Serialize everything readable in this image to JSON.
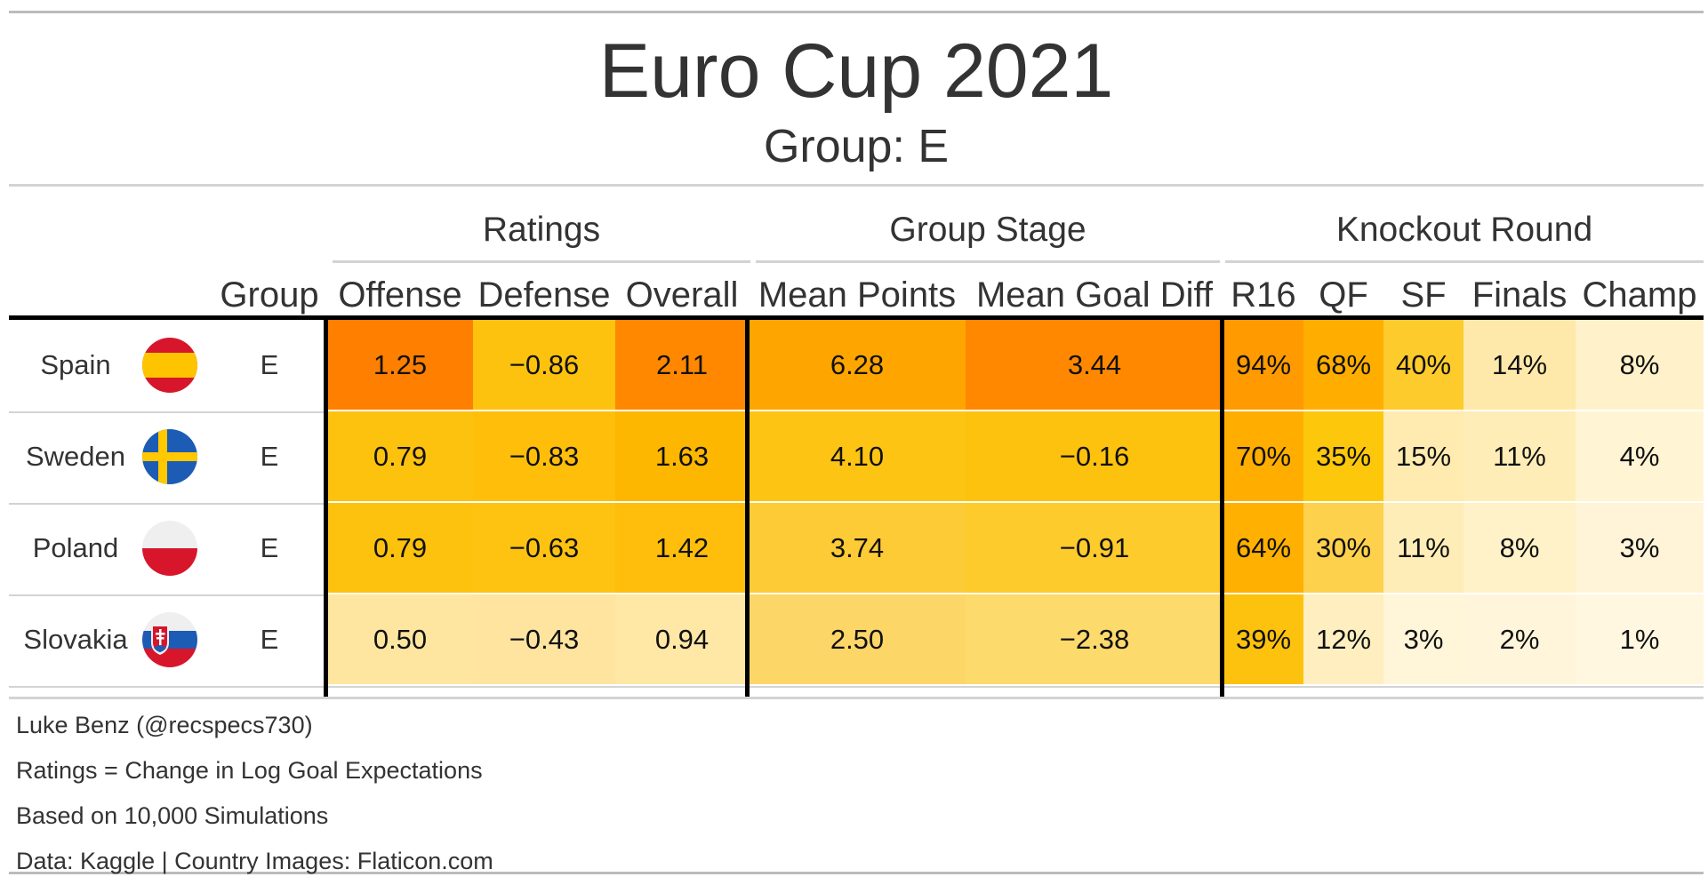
{
  "title": "Euro Cup 2021",
  "subtitle": "Group: E",
  "spanners": {
    "ratings": "Ratings",
    "group_stage": "Group Stage",
    "knockout": "Knockout Round"
  },
  "columns": {
    "group": "Group",
    "offense": "Offense",
    "defense": "Defense",
    "overall": "Overall",
    "mean_points": "Mean Points",
    "mean_goal_diff": "Mean Goal Diff",
    "r16": "R16",
    "qf": "QF",
    "sf": "SF",
    "finals": "Finals",
    "champ": "Champ"
  },
  "rows": [
    {
      "country": "Spain",
      "flag_icon": "spain-flag-icon",
      "group": "E",
      "offense": "1.25",
      "defense": "−0.86",
      "overall": "2.11",
      "mean_points": "6.28",
      "mean_goal_diff": "3.44",
      "r16": "94%",
      "qf": "68%",
      "sf": "40%",
      "finals": "14%",
      "champ": "8%"
    },
    {
      "country": "Sweden",
      "flag_icon": "sweden-flag-icon",
      "group": "E",
      "offense": "0.79",
      "defense": "−0.83",
      "overall": "1.63",
      "mean_points": "4.10",
      "mean_goal_diff": "−0.16",
      "r16": "70%",
      "qf": "35%",
      "sf": "15%",
      "finals": "11%",
      "champ": "4%"
    },
    {
      "country": "Poland",
      "flag_icon": "poland-flag-icon",
      "group": "E",
      "offense": "0.79",
      "defense": "−0.63",
      "overall": "1.42",
      "mean_points": "3.74",
      "mean_goal_diff": "−0.91",
      "r16": "64%",
      "qf": "30%",
      "sf": "11%",
      "finals": "8%",
      "champ": "3%"
    },
    {
      "country": "Slovakia",
      "flag_icon": "slovakia-flag-icon",
      "group": "E",
      "offense": "0.50",
      "defense": "−0.43",
      "overall": "0.94",
      "mean_points": "2.50",
      "mean_goal_diff": "−2.38",
      "r16": "39%",
      "qf": "12%",
      "sf": "3%",
      "finals": "2%",
      "champ": "1%"
    }
  ],
  "cell_colors": {
    "rows": [
      {
        "offense": "#FF7F00",
        "defense": "#FDC20D",
        "overall": "#FF8800",
        "mean_points": "#FFA500",
        "mean_goal_diff": "#FF8800",
        "r16": "#FF9A00",
        "qf": "#FFAE00",
        "sf": "#FDCB2C",
        "finals": "#FFE9AA",
        "champ": "#FFF1C9"
      },
      {
        "offense": "#FDC20D",
        "defense": "#FEBE0A",
        "overall": "#FEB700",
        "mean_points": "#FDC414",
        "mean_goal_diff": "#FDC20D",
        "r16": "#FFAE00",
        "qf": "#FDC80C",
        "sf": "#FFEBB0",
        "finals": "#FFEDB7",
        "champ": "#FFF4D4"
      },
      {
        "offense": "#FDC20D",
        "defense": "#FEC311",
        "overall": "#FEBE0B",
        "mean_points": "#FDCB36",
        "mean_goal_diff": "#FDCB2C",
        "r16": "#FFB000",
        "qf": "#FDD14C",
        "sf": "#FFEDB7",
        "finals": "#FFF1C8",
        "champ": "#FFF4D8"
      },
      {
        "offense": "#FFE6A0",
        "defense": "#FFE4A0",
        "overall": "#FFE7A6",
        "mean_points": "#FDD668",
        "mean_goal_diff": "#FDDA6C",
        "r16": "#FDC20D",
        "qf": "#FFEFC0",
        "sf": "#FFF5D9",
        "finals": "#FFF5DB",
        "champ": "#FFF7E0"
      }
    ]
  },
  "notes": [
    "Luke Benz (@recspecs730)",
    "Ratings = Change in Log Goal Expectations",
    "Based on 10,000 Simulations",
    "Data: Kaggle | Country Images: Flaticon.com"
  ]
}
